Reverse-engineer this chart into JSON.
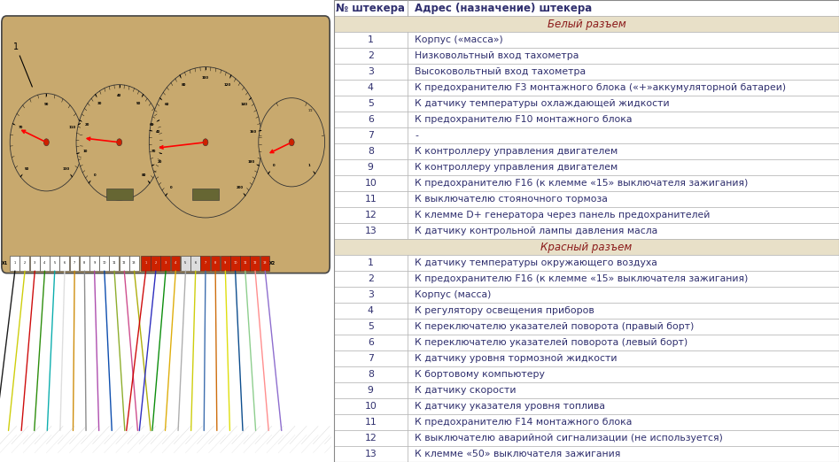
{
  "header_col1": "№ штекера",
  "header_col2": "Адрес (назначение) штекера",
  "section1_title": "Белый разъем",
  "section2_title": "Красный разъем",
  "white_rows": [
    [
      "1",
      "Корпус («масса»)"
    ],
    [
      "2",
      "Низковольтный вход тахометра"
    ],
    [
      "3",
      "Высоковольтный вход тахометра"
    ],
    [
      "4",
      "К предохранителю F3 монтажного блока («+»аккумуляторной батареи)"
    ],
    [
      "5",
      "К датчику температуры охлаждающей жидкости"
    ],
    [
      "6",
      "К предохранителю F10 монтажного блока"
    ],
    [
      "7",
      "-"
    ],
    [
      "8",
      "К контроллеру управления двигателем"
    ],
    [
      "9",
      "К контроллеру управления двигателем"
    ],
    [
      "10",
      "К предохранителю F16 (к клемме «15» выключателя зажигания)"
    ],
    [
      "11",
      "К выключателю стояночного тормоза"
    ],
    [
      "12",
      "К клемме D+ генератора через панель предохранителей"
    ],
    [
      "13",
      "К датчику контрольной лампы давления масла"
    ]
  ],
  "red_rows": [
    [
      "1",
      "К датчику температуры окружающего воздуха"
    ],
    [
      "2",
      "К предохранителю F16 (к клемме «15» выключателя зажигания)"
    ],
    [
      "3",
      "Корпус (масса)"
    ],
    [
      "4",
      "К регулятору освещения приборов"
    ],
    [
      "5",
      "К переключателю указателей поворота (правый борт)"
    ],
    [
      "6",
      "К переключателю указателей поворота (левый борт)"
    ],
    [
      "7",
      "К датчику уровня тормозной жидкости"
    ],
    [
      "8",
      "К бортовому компьютеру"
    ],
    [
      "9",
      "К датчику скорости"
    ],
    [
      "10",
      "К датчику указателя уровня топлива"
    ],
    [
      "11",
      "К предохранителю F14 монтажного блока"
    ],
    [
      "12",
      "К выключателю аварийной сигнализации (не используется)"
    ],
    [
      "13",
      "К клемме «50» выключателя зажигания"
    ]
  ],
  "bg_color": "#ffffff",
  "header_text_color": "#2f2f6e",
  "section_bg": "#e8e0c8",
  "section_text_color": "#8b1a1a",
  "row_text_color": "#2f2f6e",
  "dash_bg_color": "#c8a96e",
  "dash_border_color": "#555555",
  "connector_white_bg": "#ffffff",
  "connector_red_bg": "#cc2200",
  "wire_colors_white": [
    "#111111",
    "#cccc00",
    "#cc0000",
    "#228800",
    "#00aaaa",
    "#dddddd",
    "#cc8800",
    "#888888",
    "#aa44aa",
    "#0044aa",
    "#88aa22",
    "#cc4488",
    "#aaaa00"
  ],
  "wire_colors_red": [
    "#cc0000",
    "#2222bb",
    "#008800",
    "#ddaa00",
    "#aaaaaa",
    "#cccc00",
    "#3366aa",
    "#cc6600",
    "#dddd00",
    "#004488",
    "#88cc88",
    "#ff8888",
    "#8866cc"
  ],
  "font_size": 7.8,
  "header_font_size": 8.5,
  "section_font_size": 8.5
}
